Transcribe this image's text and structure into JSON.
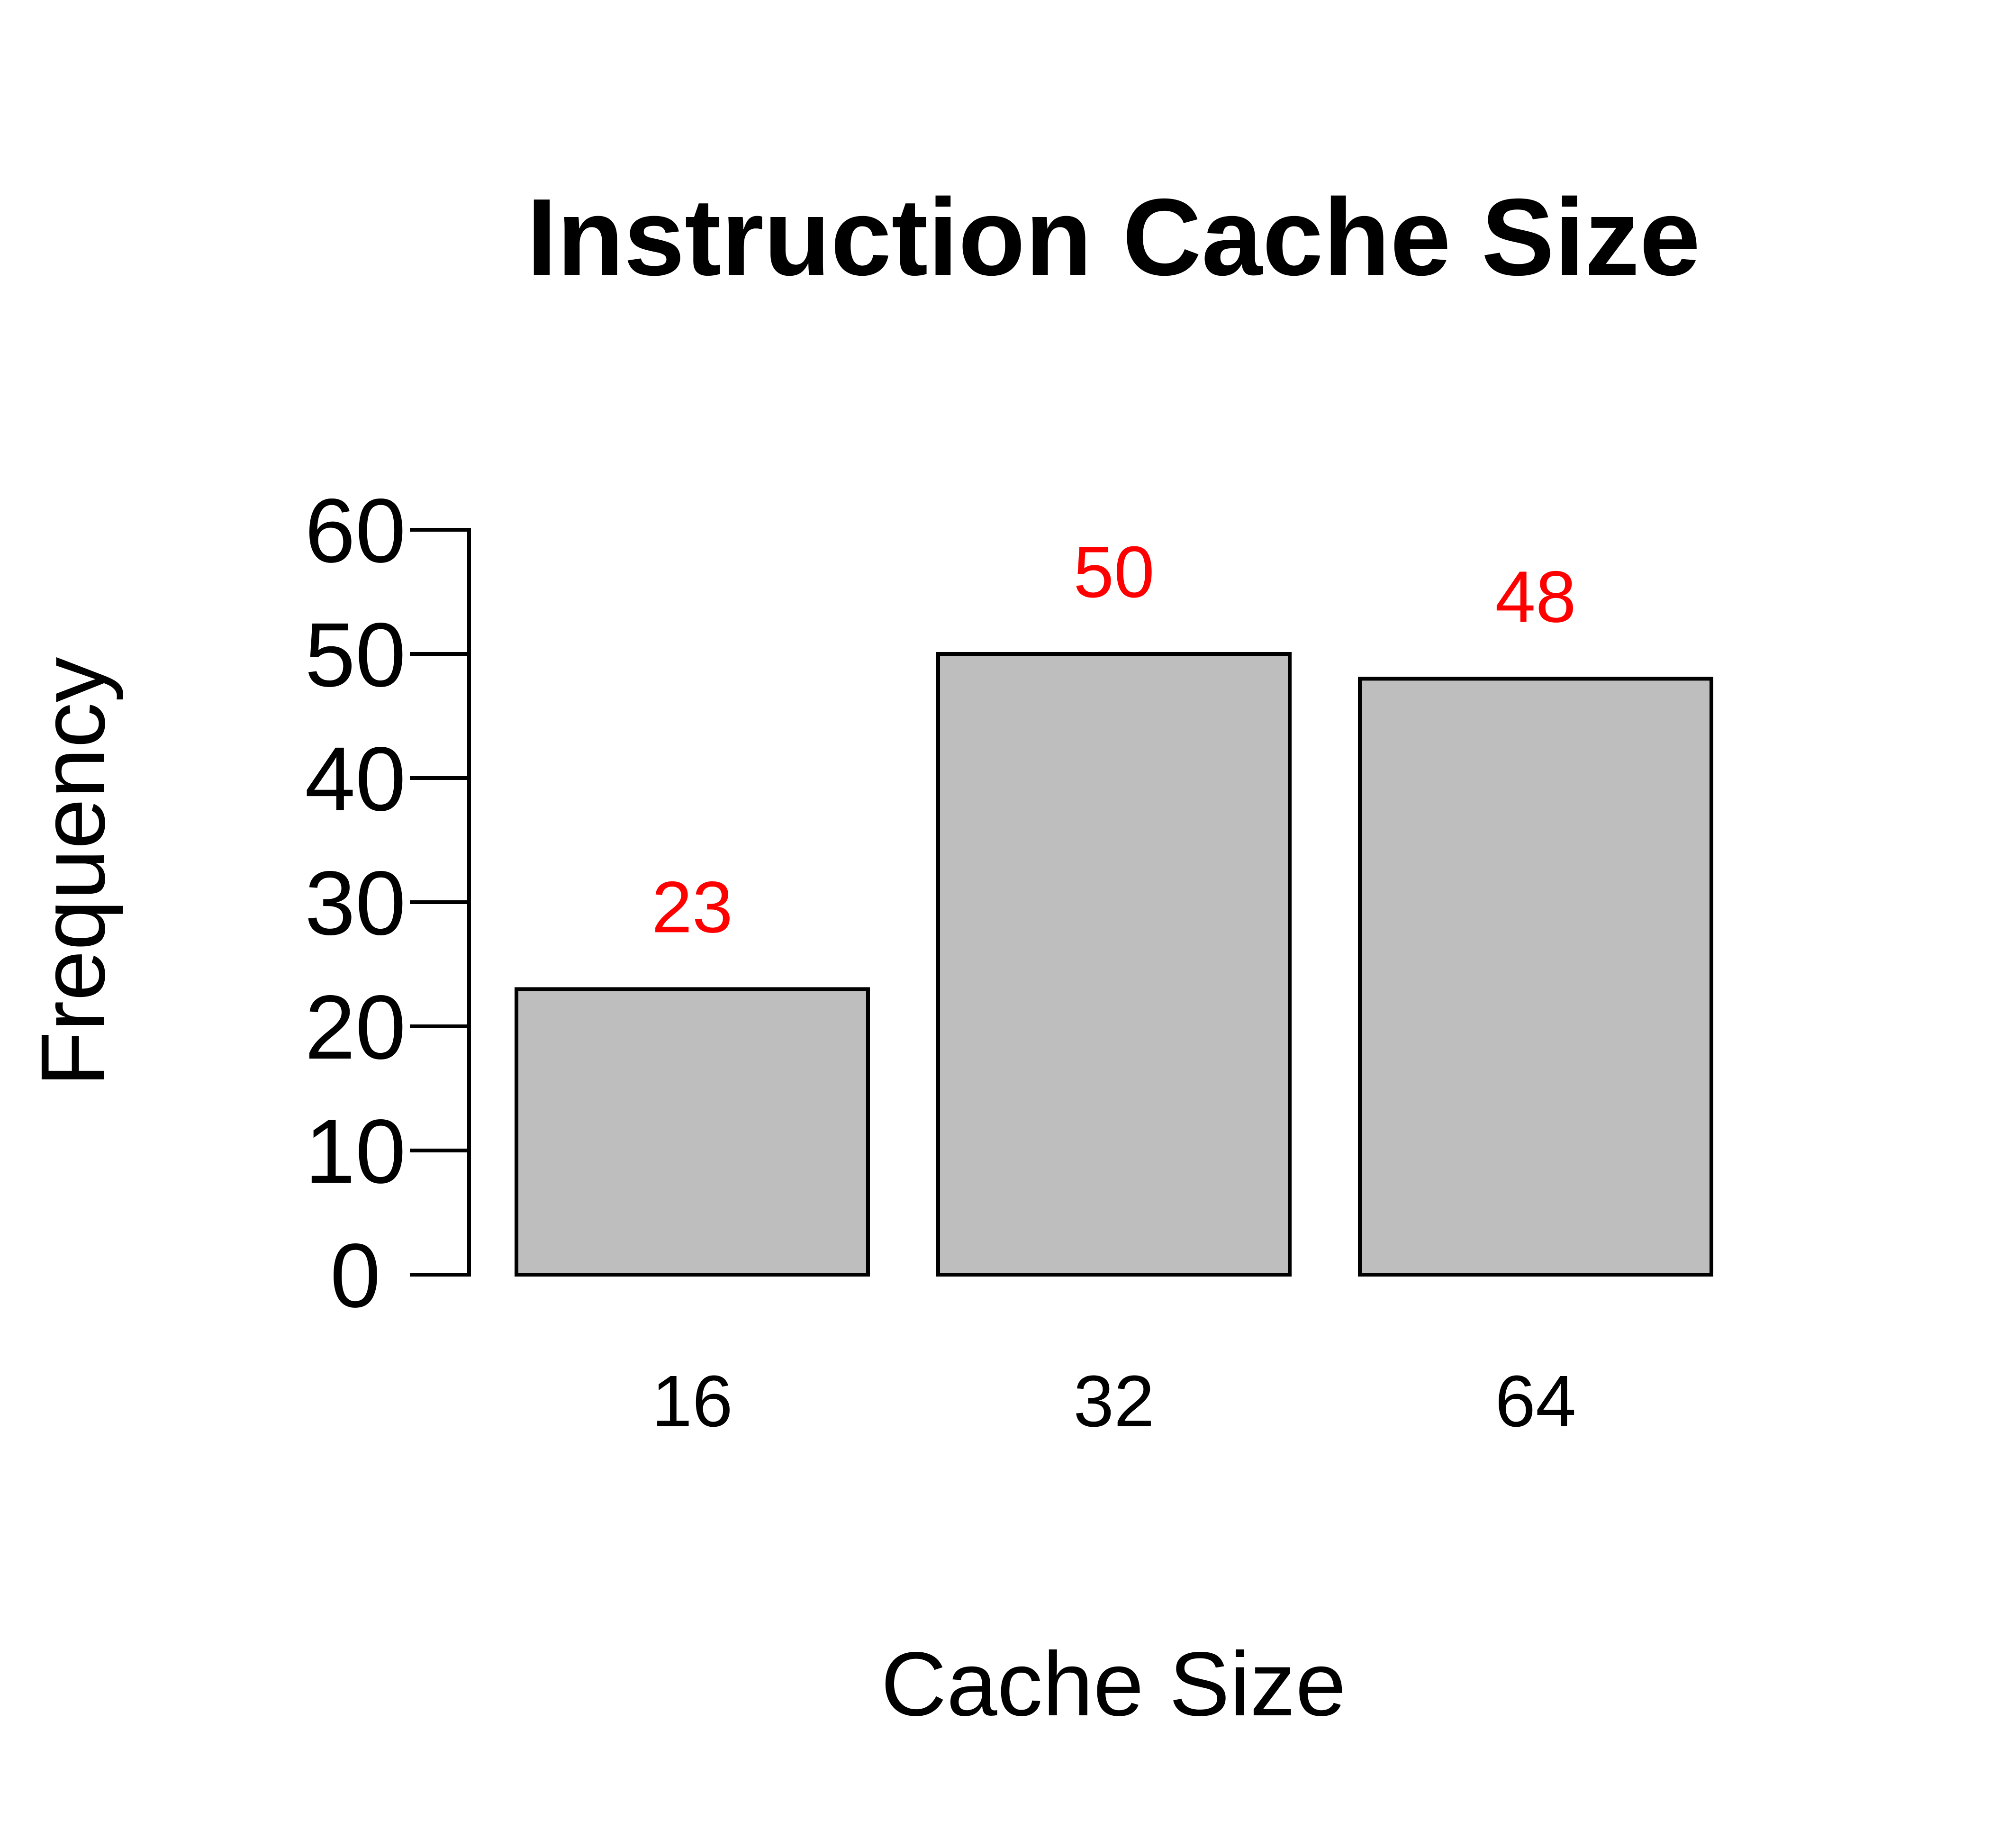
{
  "chart_data": {
    "type": "bar",
    "title": "Instruction Cache Size",
    "xlabel": "Cache Size",
    "ylabel": "Frequency",
    "categories": [
      "16",
      "32",
      "64"
    ],
    "values": [
      23,
      50,
      48
    ],
    "value_labels": [
      "23",
      "50",
      "48"
    ],
    "yticks": [
      0,
      10,
      20,
      30,
      40,
      50,
      60
    ],
    "ytick_labels": [
      "0",
      "10",
      "20",
      "30",
      "40",
      "50",
      "60"
    ],
    "ylim": [
      0,
      60
    ],
    "grid": false,
    "legend": "none",
    "colors": {
      "bar_fill": "#bebebe",
      "bar_stroke": "#000000",
      "value_label": "#ff0000",
      "axis": "#000000"
    }
  }
}
